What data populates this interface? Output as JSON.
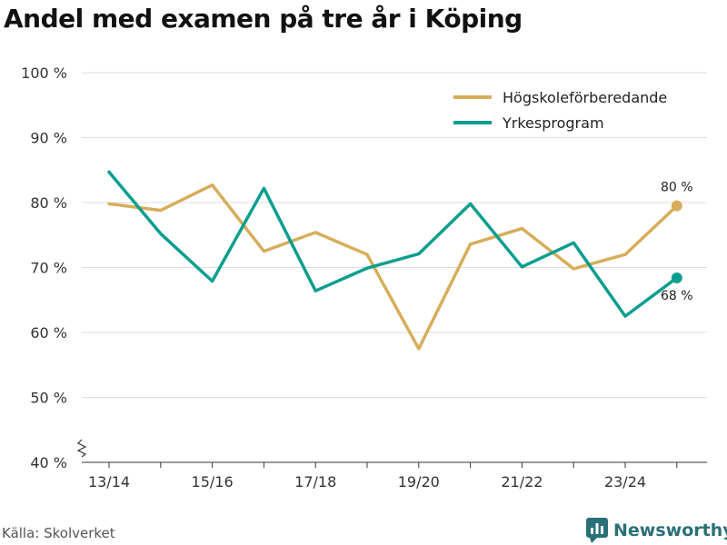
{
  "title": "Andel med examen på tre år i Köping",
  "source": "Källa: Skolverket",
  "brand": {
    "name": "Newsworthy",
    "icon": "bar-chart-logo-icon"
  },
  "colors": {
    "hogskole": "#d6ad5a",
    "yrke": "#0a9e8f",
    "grid": "#dddddd",
    "axis": "#333333",
    "brand": "#2a6f78"
  },
  "chart_data": {
    "type": "line",
    "title": "Andel med examen på tre år i Köping",
    "xlabel": "",
    "ylabel": "",
    "x": [
      "13/14",
      "14/15",
      "15/16",
      "16/17",
      "17/18",
      "18/19",
      "19/20",
      "20/21",
      "21/22",
      "22/23",
      "23/24",
      "24/25"
    ],
    "x_tick_labels": [
      "13/14",
      "15/16",
      "17/18",
      "19/20",
      "21/22",
      "23/24"
    ],
    "ylim": [
      40,
      100
    ],
    "y_ticks": [
      40,
      50,
      60,
      70,
      80,
      90,
      100
    ],
    "y_tick_labels": [
      "40 %",
      "50 %",
      "60 %",
      "70 %",
      "80 %",
      "90 %",
      "100 %"
    ],
    "axis_break": true,
    "grid": true,
    "legend_position": "top-right",
    "series": [
      {
        "name": "Högskoleförberedande",
        "values": [
          79.8,
          78.8,
          82.7,
          72.5,
          75.4,
          72.0,
          57.5,
          73.6,
          76.0,
          69.8,
          72.0,
          79.5
        ],
        "end_label": "80 %"
      },
      {
        "name": "Yrkesprogram",
        "values": [
          84.7,
          75.2,
          67.9,
          82.2,
          66.4,
          69.9,
          72.1,
          79.8,
          70.1,
          73.8,
          62.5,
          68.4
        ],
        "end_label": "68 %"
      }
    ]
  }
}
